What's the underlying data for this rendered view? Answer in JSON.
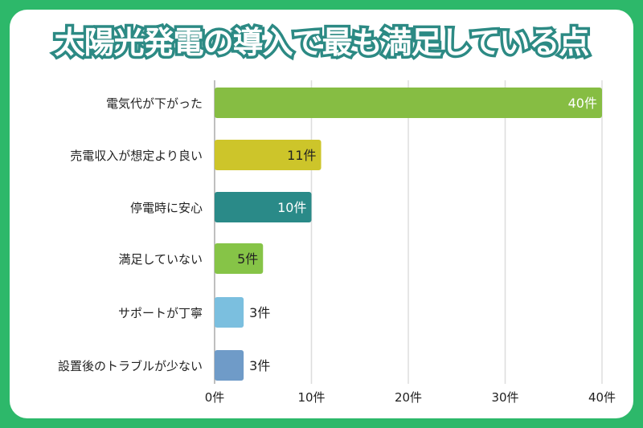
{
  "title": "太陽光発電の導入で最も満足している点",
  "chart_data": {
    "type": "bar",
    "orientation": "horizontal",
    "title": "太陽光発電の導入で最も満足している点",
    "categories": [
      "電気代が下がった",
      "売電収入が想定より良い",
      "停電時に安心",
      "満足していない",
      "サポートが丁寧",
      "設置後のトラブルが少ない"
    ],
    "values": [
      40,
      11,
      10,
      5,
      3,
      3
    ],
    "data_labels": [
      "40件",
      "11件",
      "10件",
      "5件",
      "3件",
      "3件"
    ],
    "colors": [
      "#86bd43",
      "#cdc52a",
      "#2a8a88",
      "#86c447",
      "#7bbfdf",
      "#6f9bc8"
    ],
    "label_colors": [
      "#ffffff",
      "#222222",
      "#ffffff",
      "#222222",
      "#222222",
      "#222222"
    ],
    "xlim": [
      0,
      40
    ],
    "xticks": [
      0,
      10,
      20,
      30,
      40
    ],
    "xtick_labels": [
      "0件",
      "10件",
      "20件",
      "30件",
      "40件"
    ],
    "grid": true
  }
}
